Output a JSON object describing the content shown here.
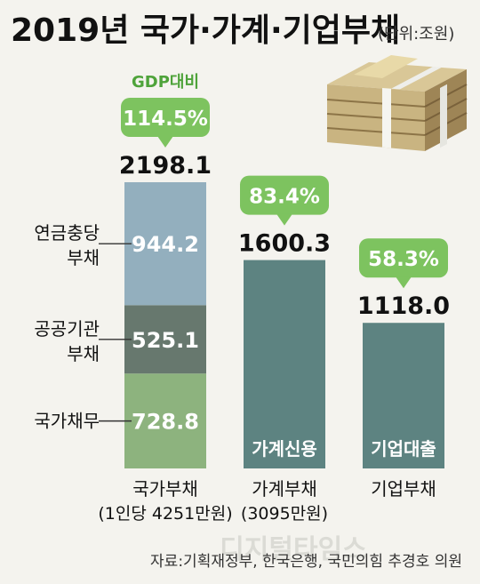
{
  "header": {
    "title": "2019년 국가·가계·기업부채",
    "unit": "(단위:조원)"
  },
  "gdp_label": "GDP대비",
  "source": "자료:기획재정부, 한국은행, 국민의힘 추경호 의원",
  "watermark": "디지털타임스",
  "chart_data": {
    "type": "bar",
    "stacked": true,
    "title": "2019년 국가·가계·기업부채",
    "unit": "(단위:조원)",
    "ylim": [
      0,
      2198.1
    ],
    "categories": [
      {
        "label": "국가부채",
        "sublabel": "(1인당 4251만원)",
        "total": "2198.1",
        "gdp_ratio": "114.5%"
      },
      {
        "label": "가계부채",
        "sublabel": "(3095만원)",
        "total": "1600.3",
        "gdp_ratio": "83.4%",
        "inner_label": "가계신용"
      },
      {
        "label": "기업부채",
        "sublabel": "",
        "total": "1118.0",
        "gdp_ratio": "58.3%",
        "inner_label": "기업대출"
      }
    ],
    "series": [
      {
        "name": "국가채무",
        "values": [
          728.8,
          0,
          0
        ],
        "labels": [
          "728.8",
          "",
          ""
        ],
        "color": "#8db37e"
      },
      {
        "name": "공공기관 부채",
        "values": [
          525.1,
          0,
          0
        ],
        "labels": [
          "525.1",
          "",
          ""
        ],
        "color": "#67786e"
      },
      {
        "name": "연금충당 부채",
        "values": [
          944.2,
          0,
          0
        ],
        "labels": [
          "944.2",
          "",
          ""
        ],
        "color": "#93afbe"
      },
      {
        "name": "가계신용",
        "values": [
          0,
          1600.3,
          0
        ],
        "labels": [
          "",
          "",
          ""
        ],
        "color": "#5d8381"
      },
      {
        "name": "기업대출",
        "values": [
          0,
          0,
          1118.0
        ],
        "labels": [
          "",
          "",
          ""
        ],
        "color": "#5d8381"
      }
    ],
    "legend_left": [
      {
        "line1": "연금충당",
        "line2": "부채",
        "series": 2
      },
      {
        "line1": "공공기관",
        "line2": "부채",
        "series": 1
      },
      {
        "line1": "국가채무",
        "line2": "",
        "series": 0
      }
    ],
    "colors": {
      "bubble": "#7dc35f",
      "bubble_text": "#ffffff",
      "gdp_label": "#4ea33a",
      "background": "#f4f3ee"
    }
  }
}
